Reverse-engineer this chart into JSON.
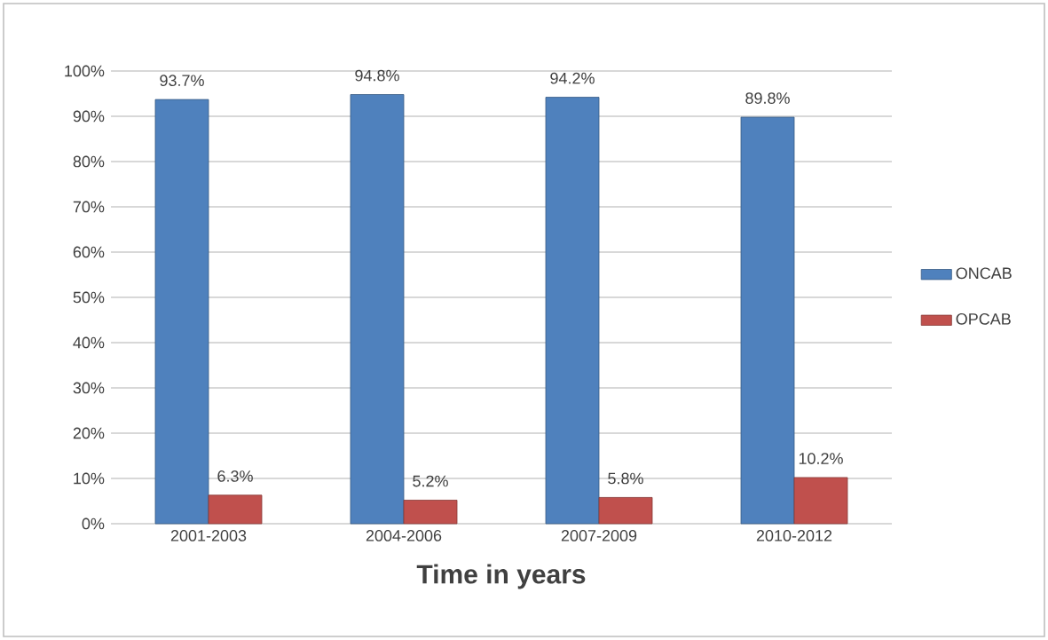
{
  "chart_data": {
    "type": "bar",
    "xlabel": "Time in years",
    "categories": [
      "2001-2003",
      "2004-2006",
      "2007-2009",
      "2010-2012"
    ],
    "series": [
      {
        "name": "ONCAB",
        "color": "#4f81bd",
        "values": [
          93.7,
          94.8,
          94.2,
          89.8
        ],
        "value_labels": [
          "93.7%",
          "94.8%",
          "94.2%",
          "89.8%"
        ]
      },
      {
        "name": "OPCAB",
        "color": "#c0504d",
        "values": [
          6.3,
          5.2,
          5.8,
          10.2
        ],
        "value_labels": [
          "6.3%",
          "5.2%",
          "5.8%",
          "10.2%"
        ]
      }
    ],
    "ylim": [
      0,
      100
    ],
    "yticks": [
      {
        "value": 0,
        "label": "0%"
      },
      {
        "value": 10,
        "label": "10%"
      },
      {
        "value": 20,
        "label": "20%"
      },
      {
        "value": 30,
        "label": "30%"
      },
      {
        "value": 40,
        "label": "40%"
      },
      {
        "value": 50,
        "label": "50%"
      },
      {
        "value": 60,
        "label": "60%"
      },
      {
        "value": 70,
        "label": "70%"
      },
      {
        "value": 80,
        "label": "80%"
      },
      {
        "value": 90,
        "label": "90%"
      },
      {
        "value": 100,
        "label": "100%"
      }
    ],
    "grid": "y",
    "legend": "right"
  }
}
